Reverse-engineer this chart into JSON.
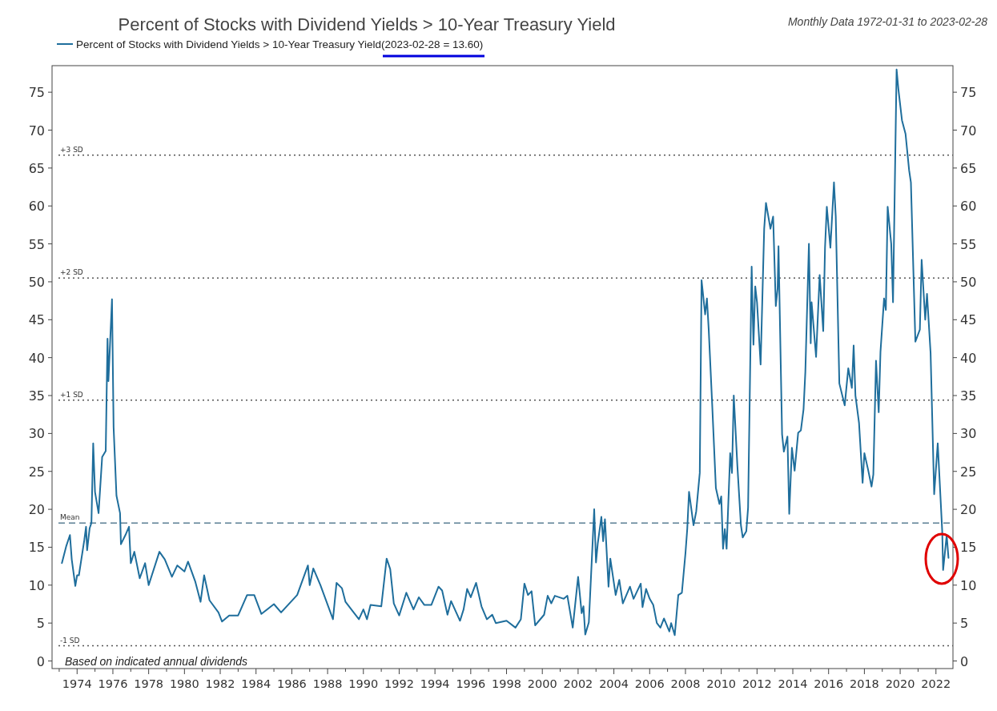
{
  "chart_data": {
    "type": "line",
    "title": "Percent of Stocks with Dividend Yields > 10-Year Treasury Yield",
    "subtitle": "Monthly Data 1972-01-31 to 2023-02-28",
    "annotations": [
      "Based on indicated annual dividends"
    ],
    "legend": "top",
    "grid": false,
    "marker": "none",
    "line_style": "solid",
    "xlim": [
      1972.6,
      2022.95
    ],
    "xticks": [
      {
        "value": 1973,
        "label": null
      },
      1974,
      {
        "value": 1975,
        "label": null
      },
      1976,
      {
        "value": 1977,
        "label": null
      },
      1978,
      {
        "value": 1979,
        "label": null
      },
      1980,
      {
        "value": 1981,
        "label": null
      },
      1982,
      {
        "value": 1983,
        "label": null
      },
      1984,
      {
        "value": 1985,
        "label": null
      },
      1986,
      {
        "value": 1987,
        "label": null
      },
      1988,
      {
        "value": 1989,
        "label": null
      },
      1990,
      {
        "value": 1991,
        "label": null
      },
      1992,
      {
        "value": 1993,
        "label": null
      },
      1994,
      {
        "value": 1995,
        "label": null
      },
      1996,
      {
        "value": 1997,
        "label": null
      },
      1998,
      {
        "value": 1999,
        "label": null
      },
      2000,
      {
        "value": 2001,
        "label": null
      },
      2002,
      {
        "value": 2003,
        "label": null
      },
      2004,
      {
        "value": 2005,
        "label": null
      },
      2006,
      {
        "value": 2007,
        "label": null
      },
      2008,
      {
        "value": 2009,
        "label": null
      },
      2010,
      {
        "value": 2011,
        "label": null
      },
      2012,
      {
        "value": 2013,
        "label": null
      },
      2014,
      {
        "value": 2015,
        "label": null
      },
      2016,
      {
        "value": 2017,
        "label": null
      },
      2018,
      {
        "value": 2019,
        "label": null
      },
      2020,
      {
        "value": 2021,
        "label": null
      },
      2022
    ],
    "ylim": [
      -1,
      78.5
    ],
    "yticks": [
      0,
      5,
      10,
      15,
      20,
      25,
      30,
      35,
      40,
      45,
      50,
      55,
      60,
      65,
      70,
      75
    ],
    "y2lim": [
      -1,
      78.5
    ],
    "y2ticks": [
      0,
      5,
      10,
      15,
      20,
      25,
      30,
      35,
      40,
      45,
      50,
      55,
      60,
      65,
      70,
      75
    ],
    "ref_lines": [
      {
        "axis": "y",
        "value": 66.7,
        "label": "+3 SD",
        "line_style": "dotted",
        "color": "#555555"
      },
      {
        "axis": "y",
        "value": 50.5,
        "label": "+2 SD",
        "line_style": "dotted",
        "color": "#555555"
      },
      {
        "axis": "y",
        "value": 34.4,
        "label": "+1 SD",
        "line_style": "dotted",
        "color": "#555555"
      },
      {
        "axis": "y",
        "value": 18.2,
        "label": "Mean",
        "line_style": "dashed",
        "color": "#5a7f94"
      },
      {
        "axis": "y",
        "value": 2.0,
        "label": "-1 SD",
        "line_style": "dotted",
        "color": "#555555"
      }
    ],
    "series": [
      {
        "name": "Percent of Stocks with Dividend Yields > 10-Year Treasury Yield(2023-02-28 = 13.60)",
        "color": "#1f6e9c",
        "x": [
          1973.15,
          1973.4,
          1973.6,
          1973.7,
          1973.9,
          1974.0,
          1974.1,
          1974.4,
          1974.5,
          1974.56,
          1974.7,
          1974.8,
          1974.9,
          1975.0,
          1975.2,
          1975.4,
          1975.6,
          1975.7,
          1975.75,
          1975.86,
          1975.95,
          1976.04,
          1976.2,
          1976.4,
          1976.45,
          1976.7,
          1976.9,
          1977.0,
          1977.2,
          1977.5,
          1977.8,
          1978.0,
          1978.6,
          1978.9,
          1979.3,
          1979.6,
          1980.0,
          1980.2,
          1980.6,
          1980.9,
          1981.1,
          1981.4,
          1981.9,
          1982.1,
          1982.5,
          1983.0,
          1983.5,
          1983.9,
          1984.3,
          1985.0,
          1985.4,
          1986.3,
          1986.9,
          1987.0,
          1987.2,
          1987.6,
          1988.3,
          1988.5,
          1988.8,
          1989.0,
          1989.75,
          1990.0,
          1990.2,
          1990.4,
          1991.0,
          1991.3,
          1991.5,
          1991.7,
          1992.0,
          1992.4,
          1992.8,
          1993.1,
          1993.4,
          1993.8,
          1994.2,
          1994.4,
          1994.7,
          1994.9,
          1995.4,
          1995.6,
          1995.8,
          1996.0,
          1996.3,
          1996.6,
          1996.9,
          1997.2,
          1997.4,
          1998.0,
          1998.5,
          1998.8,
          1999.0,
          1999.2,
          1999.4,
          1999.6,
          2000.1,
          2000.3,
          2000.5,
          2000.7,
          2001.2,
          2001.4,
          2001.7,
          2002.0,
          2002.2,
          2002.3,
          2002.4,
          2002.6,
          2002.9,
          2003.0,
          2003.1,
          2003.3,
          2003.4,
          2003.5,
          2003.7,
          2003.8,
          2004.1,
          2004.3,
          2004.5,
          2004.9,
          2005.1,
          2005.5,
          2005.6,
          2005.8,
          2006.0,
          2006.2,
          2006.4,
          2006.6,
          2006.8,
          2007.1,
          2007.2,
          2007.4,
          2007.6,
          2007.8,
          2008.0,
          2008.1,
          2008.2,
          2008.45,
          2008.6,
          2008.8,
          2008.9,
          2009.1,
          2009.2,
          2009.3,
          2009.5,
          2009.7,
          2009.9,
          2010.0,
          2010.1,
          2010.2,
          2010.3,
          2010.5,
          2010.6,
          2010.7,
          2010.9,
          2011.1,
          2011.2,
          2011.4,
          2011.5,
          2011.7,
          2011.8,
          2011.9,
          2012.0,
          2012.2,
          2012.4,
          2012.5,
          2012.75,
          2012.9,
          2013.05,
          2013.15,
          2013.2,
          2013.4,
          2013.5,
          2013.7,
          2013.8,
          2013.95,
          2014.1,
          2014.3,
          2014.45,
          2014.6,
          2014.7,
          2014.9,
          2015.0,
          2015.05,
          2015.3,
          2015.5,
          2015.7,
          2015.8,
          2015.9,
          2016.1,
          2016.3,
          2016.4,
          2016.6,
          2016.9,
          2017.1,
          2017.3,
          2017.4,
          2017.5,
          2017.7,
          2017.9,
          2018.0,
          2018.2,
          2018.4,
          2018.5,
          2018.65,
          2018.8,
          2018.9,
          2019.1,
          2019.2,
          2019.3,
          2019.5,
          2019.6,
          2019.8,
          2019.9,
          2020.1,
          2020.3,
          2020.5,
          2020.6,
          2020.85,
          2021.1,
          2021.2,
          2021.4,
          2021.5,
          2021.7,
          2021.9,
          2022.1,
          2022.35,
          2022.4,
          2022.6,
          2022.7
        ],
        "values": [
          12.9,
          15.2,
          16.6,
          13.4,
          9.9,
          11.3,
          11.3,
          15.9,
          17.7,
          14.6,
          17.5,
          18.2,
          28.7,
          22.3,
          19.5,
          26.9,
          27.7,
          42.5,
          36.9,
          42.8,
          47.7,
          30.8,
          21.8,
          19.5,
          15.4,
          16.6,
          17.7,
          12.9,
          14.4,
          10.9,
          12.9,
          10.0,
          14.4,
          13.4,
          11.1,
          12.6,
          11.8,
          13.1,
          10.5,
          7.8,
          11.3,
          8.0,
          6.4,
          5.2,
          6.0,
          6.0,
          8.7,
          8.7,
          6.2,
          7.5,
          6.4,
          8.7,
          12.6,
          10.0,
          12.2,
          10.0,
          5.5,
          10.3,
          9.6,
          7.8,
          5.5,
          6.8,
          5.5,
          7.4,
          7.2,
          13.5,
          12.1,
          7.6,
          6.0,
          9.0,
          6.8,
          8.4,
          7.4,
          7.4,
          9.8,
          9.3,
          6.1,
          7.9,
          5.3,
          6.8,
          9.5,
          8.4,
          10.3,
          7.2,
          5.5,
          6.1,
          5.0,
          5.3,
          4.4,
          5.5,
          10.2,
          8.7,
          9.2,
          4.7,
          6.1,
          8.6,
          7.6,
          8.6,
          8.2,
          8.6,
          4.4,
          11.1,
          6.3,
          7.2,
          3.5,
          5.1,
          20.0,
          13.0,
          15.5,
          19.0,
          15.8,
          18.7,
          9.8,
          13.5,
          8.7,
          10.7,
          7.6,
          9.8,
          8.2,
          10.2,
          7.1,
          9.5,
          8.2,
          7.4,
          5.0,
          4.4,
          5.6,
          3.9,
          5.0,
          3.4,
          8.7,
          9.0,
          14.2,
          17.4,
          22.3,
          17.9,
          19.7,
          24.8,
          50.2,
          45.7,
          47.8,
          43.7,
          33.5,
          22.8,
          20.7,
          21.7,
          14.8,
          17.4,
          14.8,
          27.4,
          24.8,
          35.0,
          25.8,
          17.9,
          16.3,
          17.1,
          20.2,
          52.0,
          41.7,
          49.4,
          47.3,
          39.1,
          57.0,
          60.4,
          57.0,
          58.6,
          46.8,
          49.1,
          54.7,
          29.9,
          27.6,
          29.6,
          19.4,
          28.1,
          25.1,
          30.1,
          30.4,
          33.2,
          38.1,
          55.0,
          41.9,
          47.3,
          40.1,
          50.9,
          43.5,
          54.5,
          59.9,
          54.5,
          63.1,
          58.6,
          36.6,
          33.7,
          38.6,
          36.0,
          41.6,
          35.0,
          31.4,
          23.5,
          27.4,
          25.3,
          23.0,
          24.6,
          39.6,
          32.8,
          40.8,
          47.8,
          46.3,
          59.9,
          55.0,
          47.3,
          78.0,
          75.4,
          71.3,
          69.5,
          64.7,
          63.1,
          42.1,
          43.7,
          52.9,
          45.0,
          48.4,
          40.6,
          22.0,
          28.7,
          17.1,
          12.0,
          16.6,
          13.6
        ]
      }
    ]
  }
}
